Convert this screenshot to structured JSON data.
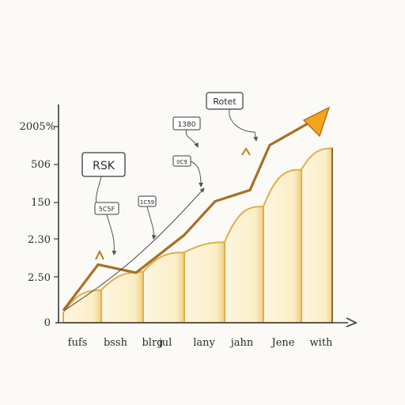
{
  "chart_data": {
    "type": "bar",
    "categories": [
      "fufs",
      "bssh",
      "blrg",
      "jul",
      "lany",
      "jahn",
      "Jene",
      "with"
    ],
    "values": [
      10,
      32,
      50,
      69,
      79,
      114,
      150,
      171
    ],
    "line": [
      12,
      57,
      49,
      86,
      119,
      130,
      174,
      200
    ],
    "y_tick_labels": [
      "0",
      "2.50",
      "2.30",
      "150",
      "506",
      "2005%"
    ],
    "xlabel": "",
    "ylabel": "",
    "annotations": [
      "RSK",
      "5C5F",
      "1C59",
      "1380",
      "0C9",
      "Rotet"
    ],
    "colors": {
      "bar_fill": "#fbeec6",
      "bar_edge": "#e3ad48",
      "bar_outline": "#4a3a20",
      "line": "#a96f22",
      "axis": "#3a3a3a"
    }
  }
}
